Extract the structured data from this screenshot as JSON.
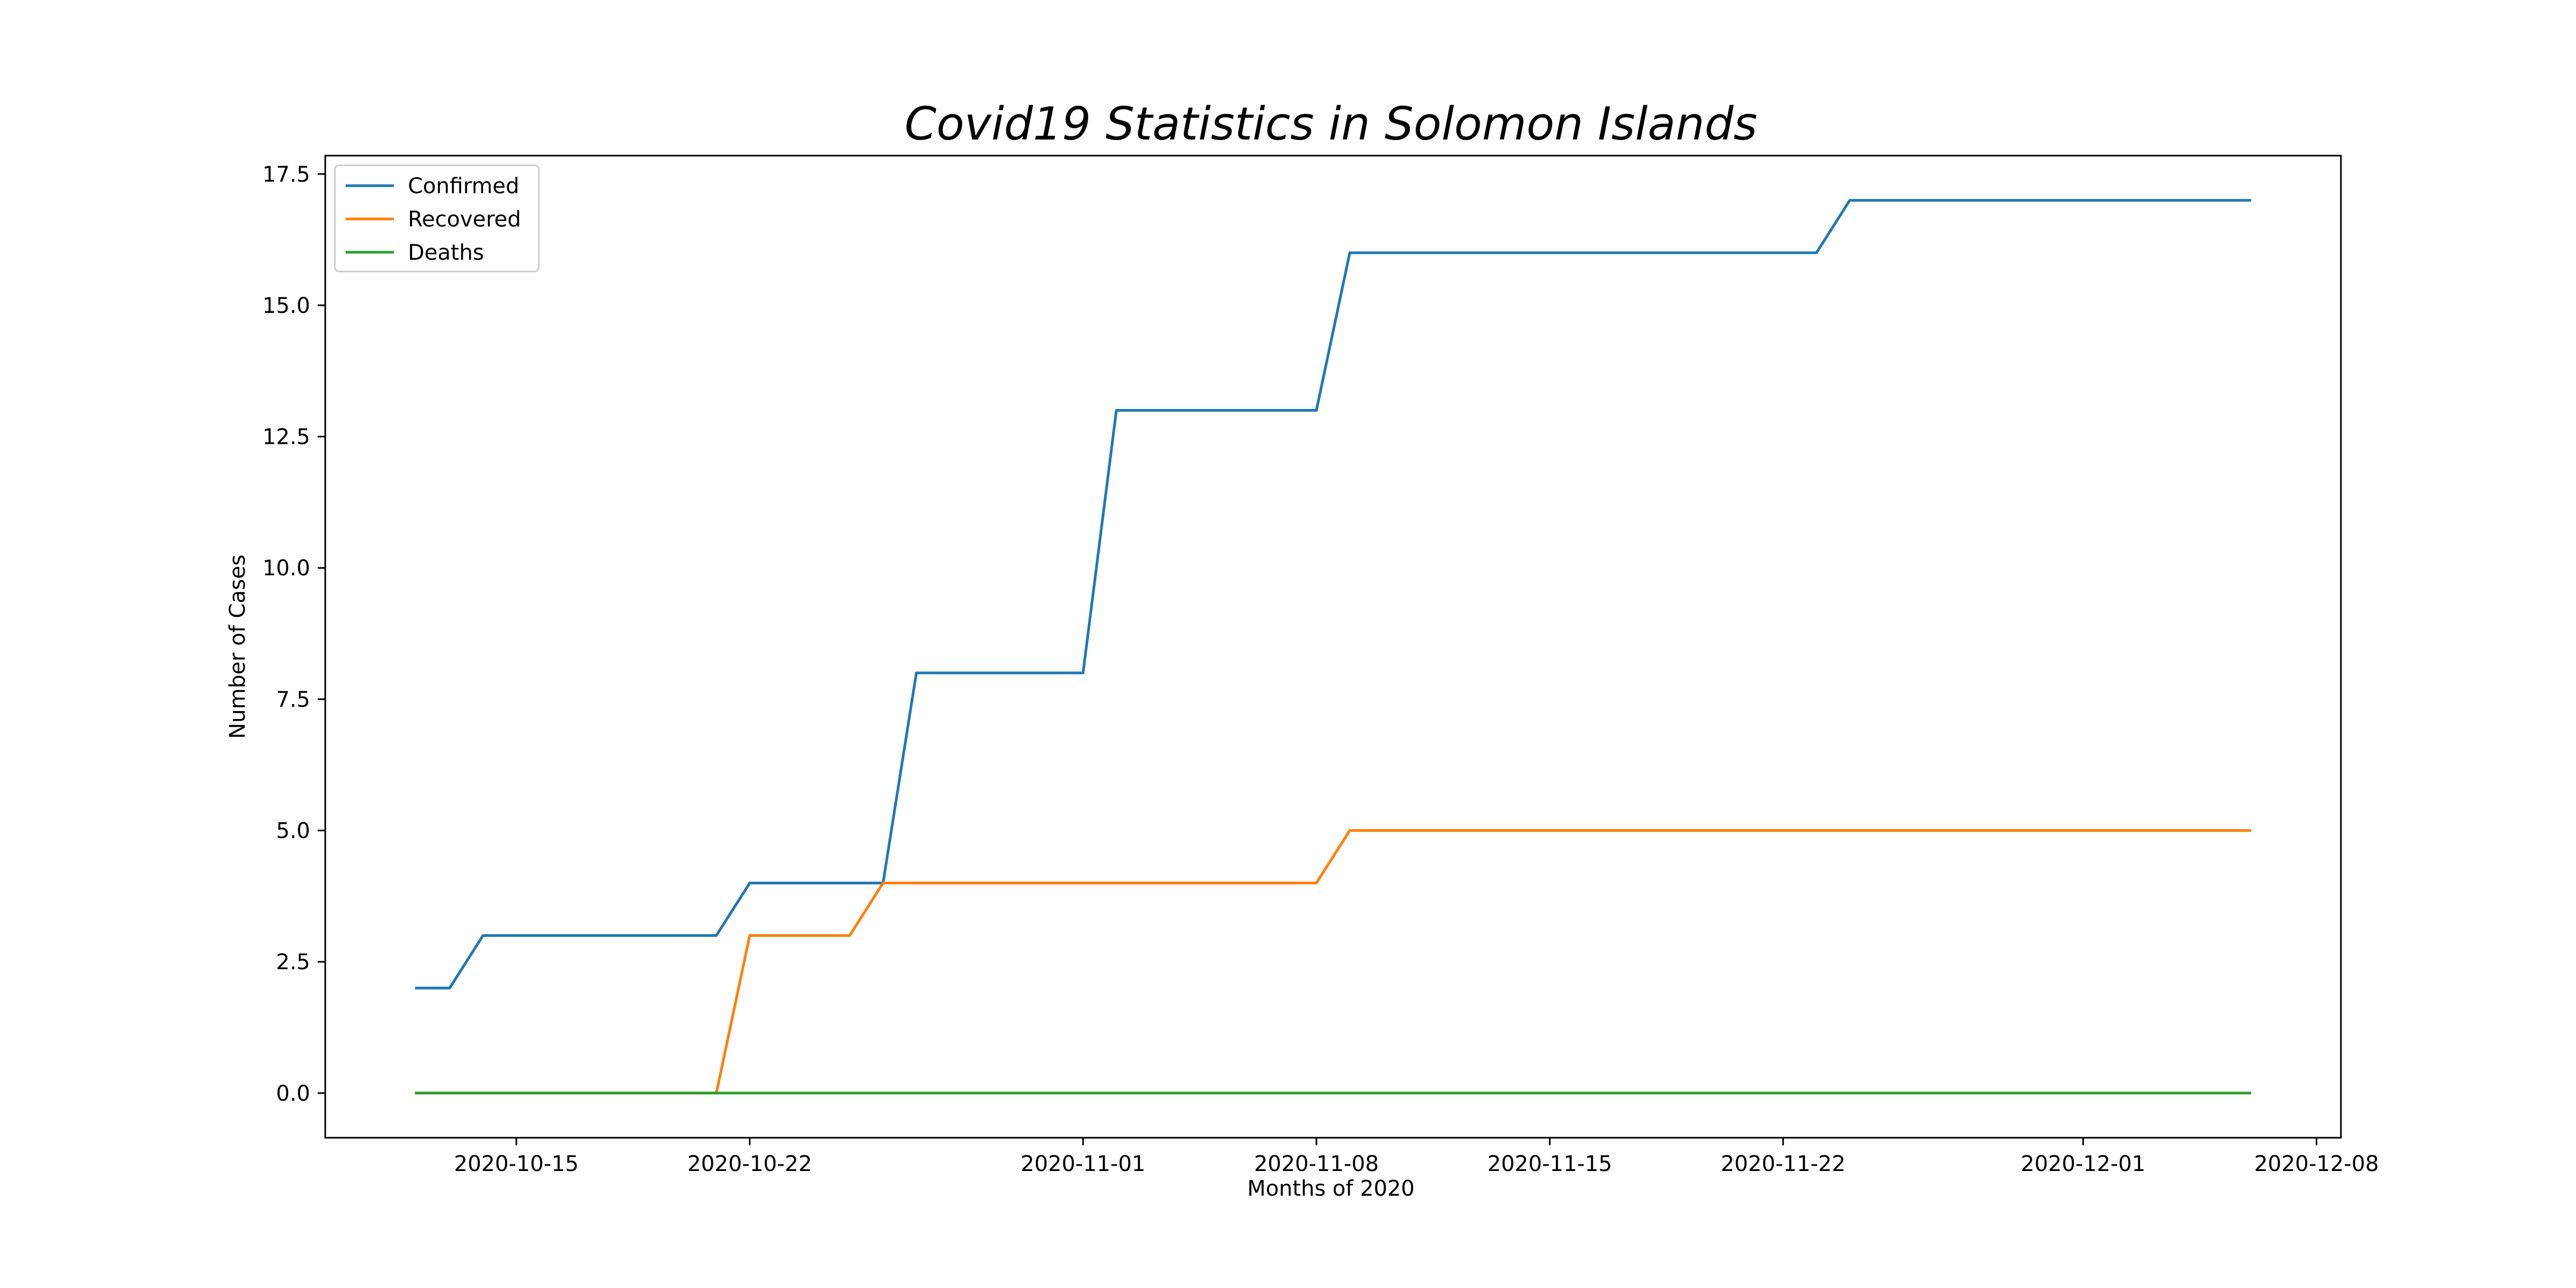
{
  "chart_data": {
    "type": "line",
    "title": "Covid19 Statistics in Solomon Islands",
    "xlabel": "Months of 2020",
    "ylabel": "Number of Cases",
    "x": [
      "2020-10-12",
      "2020-10-13",
      "2020-10-14",
      "2020-10-15",
      "2020-10-16",
      "2020-10-17",
      "2020-10-18",
      "2020-10-19",
      "2020-10-20",
      "2020-10-21",
      "2020-10-22",
      "2020-10-23",
      "2020-10-24",
      "2020-10-25",
      "2020-10-26",
      "2020-10-27",
      "2020-10-28",
      "2020-10-29",
      "2020-10-30",
      "2020-10-31",
      "2020-11-01",
      "2020-11-02",
      "2020-11-03",
      "2020-11-04",
      "2020-11-05",
      "2020-11-06",
      "2020-11-07",
      "2020-11-08",
      "2020-11-09",
      "2020-11-10",
      "2020-11-11",
      "2020-11-12",
      "2020-11-13",
      "2020-11-14",
      "2020-11-15",
      "2020-11-16",
      "2020-11-17",
      "2020-11-18",
      "2020-11-19",
      "2020-11-20",
      "2020-11-21",
      "2020-11-22",
      "2020-11-23",
      "2020-11-24",
      "2020-11-25",
      "2020-11-26",
      "2020-11-27",
      "2020-11-28",
      "2020-11-29",
      "2020-11-30",
      "2020-12-01",
      "2020-12-02",
      "2020-12-03",
      "2020-12-04",
      "2020-12-05",
      "2020-12-06"
    ],
    "series": [
      {
        "name": "Confirmed",
        "color": "#1f77b4",
        "values": [
          2,
          2,
          3,
          3,
          3,
          3,
          3,
          3,
          3,
          3,
          4,
          4,
          4,
          4,
          4,
          8,
          8,
          8,
          8,
          8,
          8,
          13,
          13,
          13,
          13,
          13,
          13,
          13,
          16,
          16,
          16,
          16,
          16,
          16,
          16,
          16,
          16,
          16,
          16,
          16,
          16,
          16,
          16,
          17,
          17,
          17,
          17,
          17,
          17,
          17,
          17,
          17,
          17,
          17,
          17,
          17
        ]
      },
      {
        "name": "Recovered",
        "color": "#ff7f0e",
        "values": [
          0,
          0,
          0,
          0,
          0,
          0,
          0,
          0,
          0,
          0,
          3,
          3,
          3,
          3,
          4,
          4,
          4,
          4,
          4,
          4,
          4,
          4,
          4,
          4,
          4,
          4,
          4,
          4,
          5,
          5,
          5,
          5,
          5,
          5,
          5,
          5,
          5,
          5,
          5,
          5,
          5,
          5,
          5,
          5,
          5,
          5,
          5,
          5,
          5,
          5,
          5,
          5,
          5,
          5,
          5,
          5
        ]
      },
      {
        "name": "Deaths",
        "color": "#2ca02c",
        "values": [
          0,
          0,
          0,
          0,
          0,
          0,
          0,
          0,
          0,
          0,
          0,
          0,
          0,
          0,
          0,
          0,
          0,
          0,
          0,
          0,
          0,
          0,
          0,
          0,
          0,
          0,
          0,
          0,
          0,
          0,
          0,
          0,
          0,
          0,
          0,
          0,
          0,
          0,
          0,
          0,
          0,
          0,
          0,
          0,
          0,
          0,
          0,
          0,
          0,
          0,
          0,
          0,
          0,
          0,
          0,
          0
        ]
      }
    ],
    "xlim": [
      "2020-10-09 06:24",
      "2020-12-08 17:36"
    ],
    "ylim": [
      -0.85,
      17.85
    ],
    "xticks": [
      "2020-10-15",
      "2020-10-22",
      "2020-11-01",
      "2020-11-08",
      "2020-11-15",
      "2020-11-22",
      "2020-12-01",
      "2020-12-08"
    ],
    "yticks": [
      0.0,
      2.5,
      5.0,
      7.5,
      10.0,
      12.5,
      15.0,
      17.5
    ],
    "ytick_labels": [
      "0.0",
      "2.5",
      "5.0",
      "7.5",
      "10.0",
      "12.5",
      "15.0",
      "17.5"
    ],
    "grid": false,
    "legend_position": "top-left"
  }
}
